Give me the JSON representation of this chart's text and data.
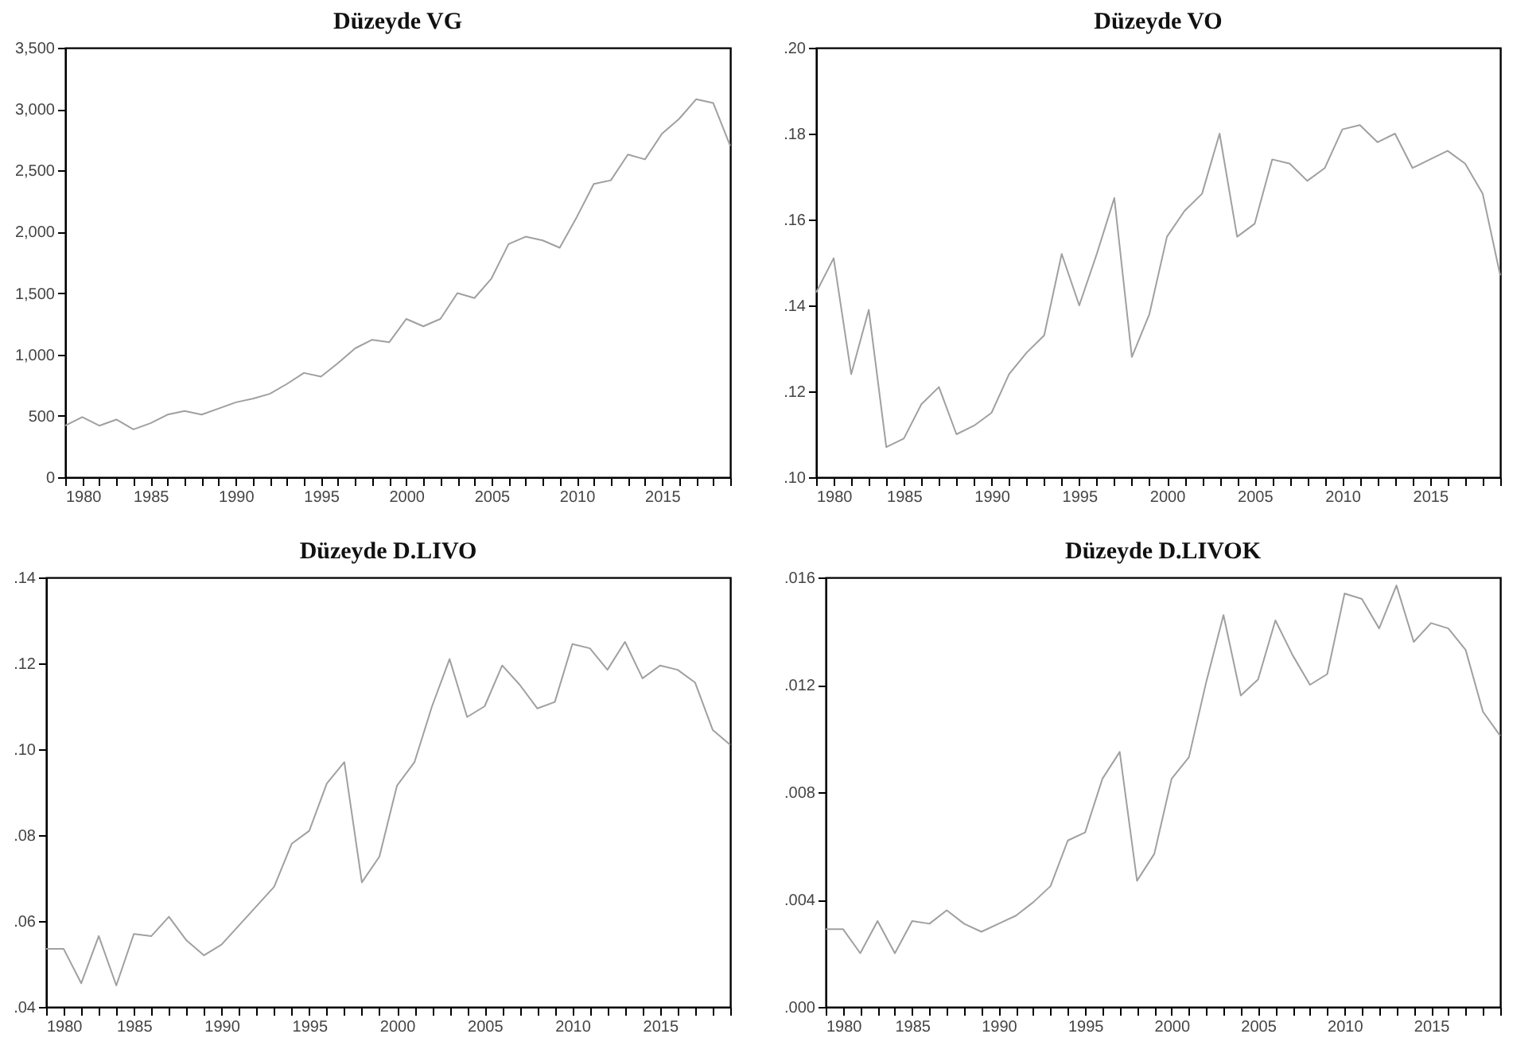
{
  "chart_data": [
    {
      "type": "line",
      "title": "Düzeyde VG",
      "x": [
        1980,
        1981,
        1982,
        1983,
        1984,
        1985,
        1986,
        1987,
        1988,
        1989,
        1990,
        1991,
        1992,
        1993,
        1994,
        1995,
        1996,
        1997,
        1998,
        1999,
        2000,
        2001,
        2002,
        2003,
        2004,
        2005,
        2006,
        2007,
        2008,
        2009,
        2010,
        2011,
        2012,
        2013,
        2014,
        2015,
        2016,
        2017,
        2018,
        2019
      ],
      "values": [
        420,
        490,
        420,
        470,
        390,
        440,
        510,
        540,
        510,
        560,
        610,
        640,
        680,
        760,
        850,
        820,
        930,
        1050,
        1120,
        1100,
        1290,
        1230,
        1290,
        1500,
        1460,
        1620,
        1900,
        1960,
        1930,
        1870,
        2120,
        2390,
        2420,
        2630,
        2590,
        2800,
        2920,
        3080,
        3050,
        2700
      ],
      "color": "#a0a0a0",
      "xlim": [
        1980,
        2019
      ],
      "xticks": [
        1980,
        {
          "value": 1981,
          "label": null
        },
        {
          "value": 1982,
          "label": null
        },
        {
          "value": 1983,
          "label": null
        },
        {
          "value": 1984,
          "label": null
        },
        1985,
        {
          "value": 1986,
          "label": null
        },
        {
          "value": 1987,
          "label": null
        },
        {
          "value": 1988,
          "label": null
        },
        {
          "value": 1989,
          "label": null
        },
        1990,
        {
          "value": 1991,
          "label": null
        },
        {
          "value": 1992,
          "label": null
        },
        {
          "value": 1993,
          "label": null
        },
        {
          "value": 1994,
          "label": null
        },
        1995,
        {
          "value": 1996,
          "label": null
        },
        {
          "value": 1997,
          "label": null
        },
        {
          "value": 1998,
          "label": null
        },
        {
          "value": 1999,
          "label": null
        },
        2000,
        {
          "value": 2001,
          "label": null
        },
        {
          "value": 2002,
          "label": null
        },
        {
          "value": 2003,
          "label": null
        },
        {
          "value": 2004,
          "label": null
        },
        2005,
        {
          "value": 2006,
          "label": null
        },
        {
          "value": 2007,
          "label": null
        },
        {
          "value": 2008,
          "label": null
        },
        {
          "value": 2009,
          "label": null
        },
        2010,
        {
          "value": 2011,
          "label": null
        },
        {
          "value": 2012,
          "label": null
        },
        {
          "value": 2013,
          "label": null
        },
        {
          "value": 2014,
          "label": null
        },
        2015,
        {
          "value": 2016,
          "label": null
        },
        {
          "value": 2017,
          "label": null
        },
        {
          "value": 2018,
          "label": null
        },
        {
          "value": 2019,
          "label": null
        }
      ],
      "ylim": [
        0,
        3500
      ],
      "yticks": [
        0,
        500,
        {
          "value": 1000,
          "label": "1,000"
        },
        {
          "value": 1500,
          "label": "1,500"
        },
        {
          "value": 2000,
          "label": "2,000"
        },
        {
          "value": 2500,
          "label": "2,500"
        },
        {
          "value": 3000,
          "label": "3,000"
        },
        {
          "value": 3500,
          "label": "3,500"
        }
      ]
    },
    {
      "type": "line",
      "title": "Düzeyde VO",
      "x": [
        1980,
        1981,
        1982,
        1983,
        1984,
        1985,
        1986,
        1987,
        1988,
        1989,
        1990,
        1991,
        1992,
        1993,
        1994,
        1995,
        1996,
        1997,
        1998,
        1999,
        2000,
        2001,
        2002,
        2003,
        2004,
        2005,
        2006,
        2007,
        2008,
        2009,
        2010,
        2011,
        2012,
        2013,
        2014,
        2015,
        2016,
        2017,
        2018,
        2019
      ],
      "values": [
        0.143,
        0.151,
        0.124,
        0.139,
        0.107,
        0.109,
        0.117,
        0.121,
        0.11,
        0.112,
        0.115,
        0.124,
        0.129,
        0.133,
        0.152,
        0.14,
        0.152,
        0.165,
        0.128,
        0.138,
        0.156,
        0.162,
        0.166,
        0.18,
        0.156,
        0.159,
        0.174,
        0.173,
        0.169,
        0.172,
        0.181,
        0.182,
        0.178,
        0.18,
        0.172,
        0.174,
        0.176,
        0.173,
        0.166,
        0.147
      ],
      "color": "#a0a0a0",
      "xlim": [
        1980,
        2019
      ],
      "xticks": [
        1980,
        {
          "value": 1981,
          "label": null
        },
        {
          "value": 1982,
          "label": null
        },
        {
          "value": 1983,
          "label": null
        },
        {
          "value": 1984,
          "label": null
        },
        1985,
        {
          "value": 1986,
          "label": null
        },
        {
          "value": 1987,
          "label": null
        },
        {
          "value": 1988,
          "label": null
        },
        {
          "value": 1989,
          "label": null
        },
        1990,
        {
          "value": 1991,
          "label": null
        },
        {
          "value": 1992,
          "label": null
        },
        {
          "value": 1993,
          "label": null
        },
        {
          "value": 1994,
          "label": null
        },
        1995,
        {
          "value": 1996,
          "label": null
        },
        {
          "value": 1997,
          "label": null
        },
        {
          "value": 1998,
          "label": null
        },
        {
          "value": 1999,
          "label": null
        },
        2000,
        {
          "value": 2001,
          "label": null
        },
        {
          "value": 2002,
          "label": null
        },
        {
          "value": 2003,
          "label": null
        },
        {
          "value": 2004,
          "label": null
        },
        2005,
        {
          "value": 2006,
          "label": null
        },
        {
          "value": 2007,
          "label": null
        },
        {
          "value": 2008,
          "label": null
        },
        {
          "value": 2009,
          "label": null
        },
        2010,
        {
          "value": 2011,
          "label": null
        },
        {
          "value": 2012,
          "label": null
        },
        {
          "value": 2013,
          "label": null
        },
        {
          "value": 2014,
          "label": null
        },
        2015,
        {
          "value": 2016,
          "label": null
        },
        {
          "value": 2017,
          "label": null
        },
        {
          "value": 2018,
          "label": null
        },
        {
          "value": 2019,
          "label": null
        }
      ],
      "ylim": [
        0.1,
        0.2
      ],
      "yticks": [
        {
          "value": 0.1,
          "label": ".10"
        },
        {
          "value": 0.12,
          "label": ".12"
        },
        {
          "value": 0.14,
          "label": ".14"
        },
        {
          "value": 0.16,
          "label": ".16"
        },
        {
          "value": 0.18,
          "label": ".18"
        },
        {
          "value": 0.2,
          "label": ".20"
        }
      ]
    },
    {
      "type": "line",
      "title": "Düzeyde D.LIVO",
      "x": [
        1980,
        1981,
        1982,
        1983,
        1984,
        1985,
        1986,
        1987,
        1988,
        1989,
        1990,
        1991,
        1992,
        1993,
        1994,
        1995,
        1996,
        1997,
        1998,
        1999,
        2000,
        2001,
        2002,
        2003,
        2004,
        2005,
        2006,
        2007,
        2008,
        2009,
        2010,
        2011,
        2012,
        2013,
        2014,
        2015,
        2016,
        2017,
        2018,
        2019
      ],
      "values": [
        0.0535,
        0.0535,
        0.0455,
        0.0565,
        0.045,
        0.057,
        0.0565,
        0.061,
        0.0555,
        0.052,
        0.0545,
        0.059,
        0.0635,
        0.068,
        0.078,
        0.081,
        0.092,
        0.097,
        0.069,
        0.075,
        0.0915,
        0.097,
        0.11,
        0.121,
        0.1075,
        0.11,
        0.1195,
        0.115,
        0.1095,
        0.111,
        0.1245,
        0.1235,
        0.1185,
        0.125,
        0.1165,
        0.1195,
        0.1185,
        0.1155,
        0.1045,
        0.101
      ],
      "color": "#a0a0a0",
      "xlim": [
        1980,
        2019
      ],
      "xticks": [
        1980,
        {
          "value": 1981,
          "label": null
        },
        {
          "value": 1982,
          "label": null
        },
        {
          "value": 1983,
          "label": null
        },
        {
          "value": 1984,
          "label": null
        },
        1985,
        {
          "value": 1986,
          "label": null
        },
        {
          "value": 1987,
          "label": null
        },
        {
          "value": 1988,
          "label": null
        },
        {
          "value": 1989,
          "label": null
        },
        1990,
        {
          "value": 1991,
          "label": null
        },
        {
          "value": 1992,
          "label": null
        },
        {
          "value": 1993,
          "label": null
        },
        {
          "value": 1994,
          "label": null
        },
        1995,
        {
          "value": 1996,
          "label": null
        },
        {
          "value": 1997,
          "label": null
        },
        {
          "value": 1998,
          "label": null
        },
        {
          "value": 1999,
          "label": null
        },
        2000,
        {
          "value": 2001,
          "label": null
        },
        {
          "value": 2002,
          "label": null
        },
        {
          "value": 2003,
          "label": null
        },
        {
          "value": 2004,
          "label": null
        },
        2005,
        {
          "value": 2006,
          "label": null
        },
        {
          "value": 2007,
          "label": null
        },
        {
          "value": 2008,
          "label": null
        },
        {
          "value": 2009,
          "label": null
        },
        2010,
        {
          "value": 2011,
          "label": null
        },
        {
          "value": 2012,
          "label": null
        },
        {
          "value": 2013,
          "label": null
        },
        {
          "value": 2014,
          "label": null
        },
        2015,
        {
          "value": 2016,
          "label": null
        },
        {
          "value": 2017,
          "label": null
        },
        {
          "value": 2018,
          "label": null
        },
        {
          "value": 2019,
          "label": null
        }
      ],
      "ylim": [
        0.04,
        0.14
      ],
      "yticks": [
        {
          "value": 0.04,
          "label": ".04"
        },
        {
          "value": 0.06,
          "label": ".06"
        },
        {
          "value": 0.08,
          "label": ".08"
        },
        {
          "value": 0.1,
          "label": ".10"
        },
        {
          "value": 0.12,
          "label": ".12"
        },
        {
          "value": 0.14,
          "label": ".14"
        }
      ]
    },
    {
      "type": "line",
      "title": "Düzeyde D.LIVOK",
      "x": [
        1980,
        1981,
        1982,
        1983,
        1984,
        1985,
        1986,
        1987,
        1988,
        1989,
        1990,
        1991,
        1992,
        1993,
        1994,
        1995,
        1996,
        1997,
        1998,
        1999,
        2000,
        2001,
        2002,
        2003,
        2004,
        2005,
        2006,
        2007,
        2008,
        2009,
        2010,
        2011,
        2012,
        2013,
        2014,
        2015,
        2016,
        2017,
        2018,
        2019
      ],
      "values": [
        0.0029,
        0.0029,
        0.002,
        0.0032,
        0.002,
        0.0032,
        0.0031,
        0.0036,
        0.0031,
        0.0028,
        0.0031,
        0.0034,
        0.0039,
        0.0045,
        0.0062,
        0.0065,
        0.0085,
        0.0095,
        0.0047,
        0.0057,
        0.0085,
        0.0093,
        0.0121,
        0.0146,
        0.0116,
        0.0122,
        0.0144,
        0.0131,
        0.012,
        0.0124,
        0.0154,
        0.0152,
        0.0141,
        0.0157,
        0.0136,
        0.0143,
        0.0141,
        0.0133,
        0.011,
        0.0101
      ],
      "color": "#a0a0a0",
      "xlim": [
        1980,
        2019
      ],
      "xticks": [
        1980,
        {
          "value": 1981,
          "label": null
        },
        {
          "value": 1982,
          "label": null
        },
        {
          "value": 1983,
          "label": null
        },
        {
          "value": 1984,
          "label": null
        },
        1985,
        {
          "value": 1986,
          "label": null
        },
        {
          "value": 1987,
          "label": null
        },
        {
          "value": 1988,
          "label": null
        },
        {
          "value": 1989,
          "label": null
        },
        1990,
        {
          "value": 1991,
          "label": null
        },
        {
          "value": 1992,
          "label": null
        },
        {
          "value": 1993,
          "label": null
        },
        {
          "value": 1994,
          "label": null
        },
        1995,
        {
          "value": 1996,
          "label": null
        },
        {
          "value": 1997,
          "label": null
        },
        {
          "value": 1998,
          "label": null
        },
        {
          "value": 1999,
          "label": null
        },
        2000,
        {
          "value": 2001,
          "label": null
        },
        {
          "value": 2002,
          "label": null
        },
        {
          "value": 2003,
          "label": null
        },
        {
          "value": 2004,
          "label": null
        },
        2005,
        {
          "value": 2006,
          "label": null
        },
        {
          "value": 2007,
          "label": null
        },
        {
          "value": 2008,
          "label": null
        },
        {
          "value": 2009,
          "label": null
        },
        2010,
        {
          "value": 2011,
          "label": null
        },
        {
          "value": 2012,
          "label": null
        },
        {
          "value": 2013,
          "label": null
        },
        {
          "value": 2014,
          "label": null
        },
        2015,
        {
          "value": 2016,
          "label": null
        },
        {
          "value": 2017,
          "label": null
        },
        {
          "value": 2018,
          "label": null
        },
        {
          "value": 2019,
          "label": null
        }
      ],
      "ylim": [
        0.0,
        0.016
      ],
      "yticks": [
        {
          "value": 0.0,
          "label": ".000"
        },
        {
          "value": 0.004,
          "label": ".004"
        },
        {
          "value": 0.008,
          "label": ".008"
        },
        {
          "value": 0.012,
          "label": ".012"
        },
        {
          "value": 0.016,
          "label": ".016"
        }
      ]
    }
  ]
}
